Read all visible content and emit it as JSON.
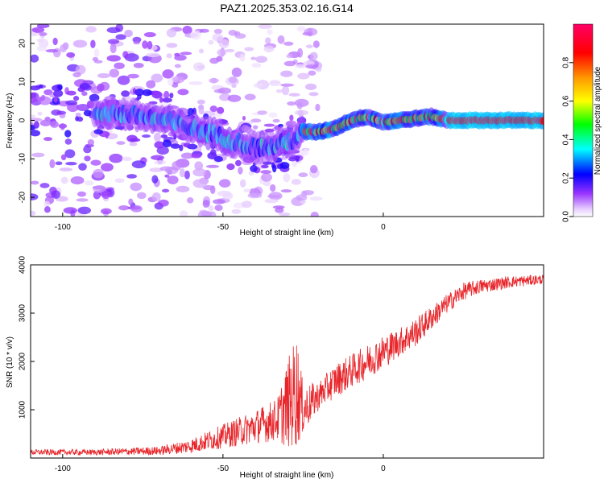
{
  "title": "PAZ1.2025.353.02.16.G14",
  "chart_data": [
    {
      "type": "heatmap",
      "xlabel": "Height of straight line (km)",
      "ylabel": "Frequency (Hz)",
      "xlim": [
        -110,
        50
      ],
      "ylim": [
        -25,
        25
      ],
      "xticks": [
        -100,
        -50,
        0
      ],
      "yticks": [
        -20,
        -10,
        0,
        10,
        20
      ],
      "colorbar": {
        "label": "Normalized spectral amplitude",
        "range": [
          0,
          1
        ],
        "ticks": [
          "0.0",
          "0.2",
          "0.4",
          "0.6",
          "0.8"
        ]
      },
      "ridge": {
        "description_points": [
          {
            "x": -85,
            "y": 2
          },
          {
            "x": -75,
            "y": 1
          },
          {
            "x": -68,
            "y": 0
          },
          {
            "x": -60,
            "y": -2
          },
          {
            "x": -55,
            "y": -3
          },
          {
            "x": -48,
            "y": -5
          },
          {
            "x": -40,
            "y": -7
          },
          {
            "x": -35,
            "y": -7
          },
          {
            "x": -28,
            "y": -5
          },
          {
            "x": -25,
            "y": -3
          },
          {
            "x": -20,
            "y": -3
          },
          {
            "x": -15,
            "y": -2
          },
          {
            "x": -10,
            "y": 0
          },
          {
            "x": -5,
            "y": 1
          },
          {
            "x": 0,
            "y": -0.5
          },
          {
            "x": 5,
            "y": 0
          },
          {
            "x": 10,
            "y": 0.5
          },
          {
            "x": 15,
            "y": 1
          },
          {
            "x": 20,
            "y": 0
          },
          {
            "x": 50,
            "y": 0
          }
        ]
      }
    },
    {
      "type": "line",
      "xlabel": "Height of straight line (km)",
      "ylabel": "SNR (10 * v/v)",
      "xlim": [
        -110,
        50
      ],
      "ylim": [
        0,
        4000
      ],
      "xticks": [
        -100,
        -50,
        0
      ],
      "yticks": [
        1000,
        2000,
        3000,
        4000
      ],
      "series_color": "#e8252a",
      "envelope": [
        {
          "x": -110,
          "mean": 120,
          "spread": 60
        },
        {
          "x": -90,
          "mean": 120,
          "spread": 60
        },
        {
          "x": -70,
          "mean": 150,
          "spread": 90
        },
        {
          "x": -60,
          "mean": 250,
          "spread": 150
        },
        {
          "x": -50,
          "mean": 450,
          "spread": 250
        },
        {
          "x": -40,
          "mean": 650,
          "spread": 350
        },
        {
          "x": -33,
          "mean": 800,
          "spread": 450
        },
        {
          "x": -30,
          "mean": 1100,
          "spread": 900
        },
        {
          "x": -27,
          "mean": 1400,
          "spread": 1200
        },
        {
          "x": -25,
          "mean": 1000,
          "spread": 500
        },
        {
          "x": -20,
          "mean": 1300,
          "spread": 300
        },
        {
          "x": -15,
          "mean": 1600,
          "spread": 350
        },
        {
          "x": -10,
          "mean": 1800,
          "spread": 350
        },
        {
          "x": -5,
          "mean": 2000,
          "spread": 350
        },
        {
          "x": 0,
          "mean": 2200,
          "spread": 350
        },
        {
          "x": 5,
          "mean": 2400,
          "spread": 300
        },
        {
          "x": 10,
          "mean": 2600,
          "spread": 300
        },
        {
          "x": 15,
          "mean": 2900,
          "spread": 250
        },
        {
          "x": 20,
          "mean": 3200,
          "spread": 200
        },
        {
          "x": 25,
          "mean": 3450,
          "spread": 180
        },
        {
          "x": 30,
          "mean": 3550,
          "spread": 150
        },
        {
          "x": 40,
          "mean": 3650,
          "spread": 120
        },
        {
          "x": 50,
          "mean": 3700,
          "spread": 100
        }
      ]
    }
  ]
}
